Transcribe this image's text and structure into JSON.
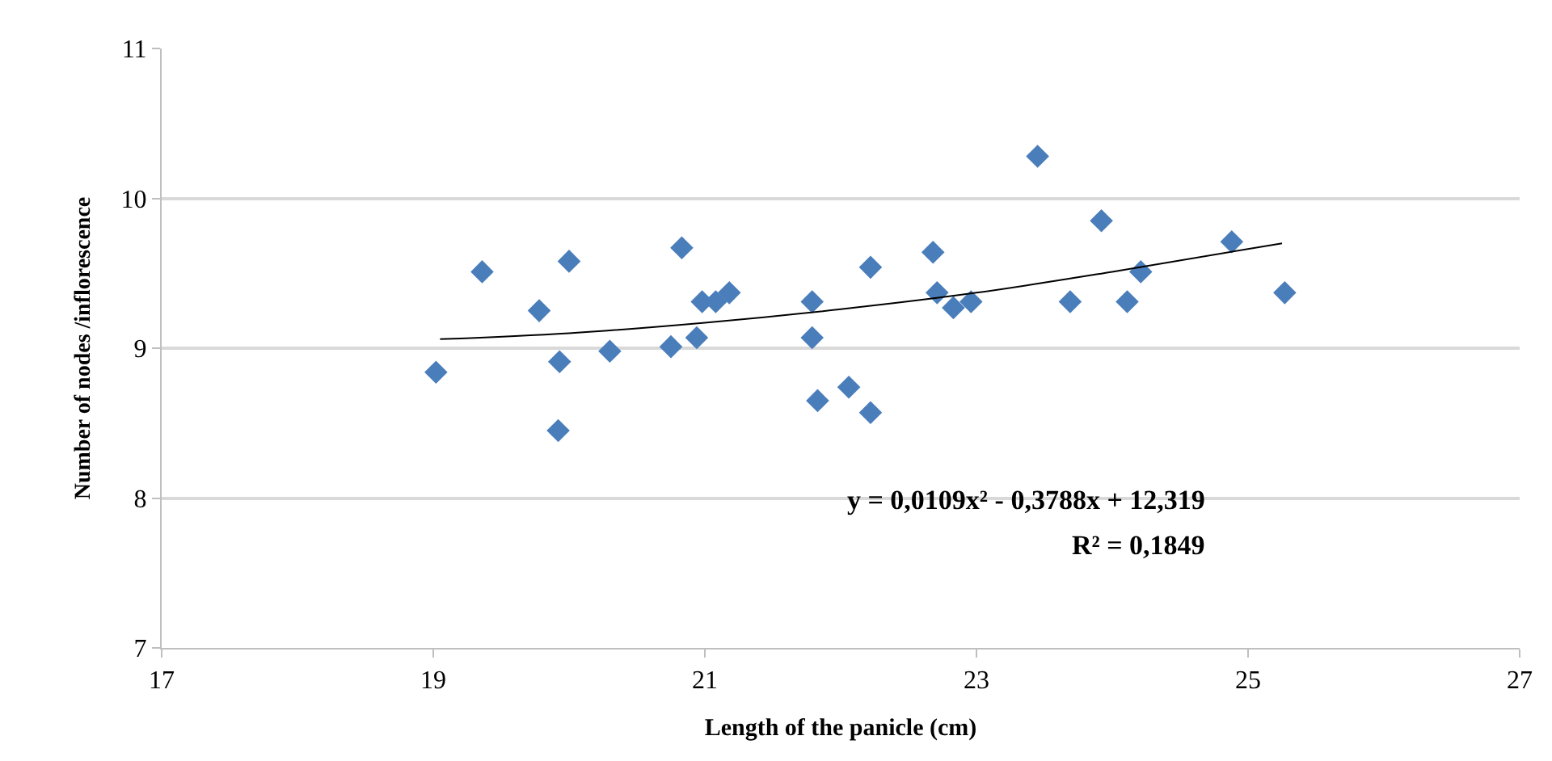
{
  "chart_data": {
    "type": "scatter",
    "xlabel": "Length of the panicle (cm)",
    "ylabel": "Number of nodes /inflorescence",
    "xlim": [
      17,
      27
    ],
    "xticks": [
      17,
      19,
      21,
      23,
      25,
      27
    ],
    "ylim": [
      7,
      11
    ],
    "yticks": [
      7,
      8,
      9,
      10,
      11
    ],
    "grid": "y",
    "legend": false,
    "marker": "diamond",
    "annotations": [
      "y = 0,0109x² - 0,3788x + 12,319",
      "R² = 0,1849"
    ],
    "series": [
      {
        "color": "#4a7ebb",
        "x": [
          19.02,
          19.36,
          19.78,
          19.93,
          19.92,
          20.0,
          20.3,
          20.75,
          20.83,
          20.94,
          20.98,
          21.08,
          21.18,
          21.79,
          21.79,
          21.83,
          22.06,
          22.22,
          22.22,
          22.68,
          22.71,
          22.83,
          22.96,
          23.45,
          23.69,
          23.92,
          24.11,
          24.21,
          24.88,
          25.27
        ],
        "values": [
          8.84,
          9.51,
          9.25,
          8.91,
          8.45,
          9.58,
          8.98,
          9.01,
          9.67,
          9.07,
          9.31,
          9.31,
          9.37,
          9.31,
          9.07,
          8.65,
          8.74,
          9.54,
          8.57,
          9.64,
          9.37,
          9.27,
          9.31,
          10.28,
          9.31,
          9.85,
          9.31,
          9.51,
          9.71,
          9.37
        ]
      },
      {
        "type": "line",
        "color": "#000000",
        "marker": "none",
        "x": [
          19.05,
          20,
          21,
          22,
          23,
          24,
          25.25
        ],
        "values": [
          9.06,
          9.1,
          9.17,
          9.26,
          9.37,
          9.51,
          9.7
        ]
      }
    ]
  }
}
